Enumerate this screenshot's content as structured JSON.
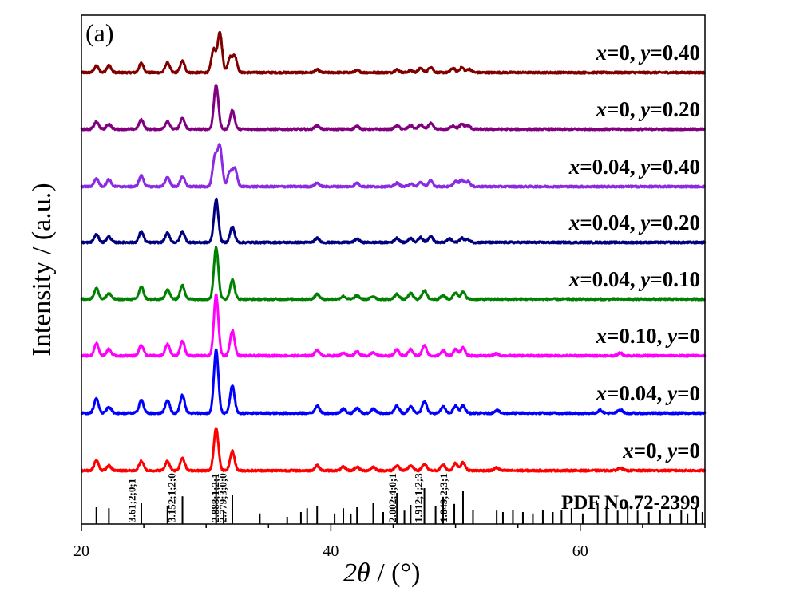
{
  "panel_label": "(a)",
  "chart_data": {
    "type": "line",
    "xlabel_symbol": "2θ",
    "xlabel_unit": " / (°)",
    "ylabel": "Intensity / (a.u.)",
    "xlim": [
      20,
      70
    ],
    "x_ticks": [
      20,
      40,
      60
    ],
    "series": [
      {
        "name": "x=0, y=0.40",
        "x_text": "x",
        "x_val": "=0, ",
        "y_text": "y",
        "y_val": "=0.40",
        "color": "#800000",
        "peaks": [
          [
            21.2,
            0.09
          ],
          [
            22.2,
            0.1
          ],
          [
            24.8,
            0.13
          ],
          [
            26.9,
            0.14
          ],
          [
            28.1,
            0.16
          ],
          [
            30.6,
            0.32
          ],
          [
            31.1,
            0.55
          ],
          [
            31.9,
            0.2
          ],
          [
            32.3,
            0.22
          ],
          [
            38.9,
            0.04
          ],
          [
            42.1,
            0.03
          ],
          [
            45.3,
            0.04
          ],
          [
            46.4,
            0.03
          ],
          [
            47.2,
            0.06
          ],
          [
            48.0,
            0.08
          ],
          [
            49.8,
            0.06
          ],
          [
            50.5,
            0.07
          ],
          [
            51.1,
            0.05
          ]
        ]
      },
      {
        "name": "x=0, y=0.20",
        "x_text": "x",
        "x_val": "=0, ",
        "y_text": "y",
        "y_val": "=0.20",
        "color": "#800080",
        "peaks": [
          [
            21.2,
            0.1
          ],
          [
            22.2,
            0.07
          ],
          [
            24.8,
            0.13
          ],
          [
            26.9,
            0.11
          ],
          [
            28.1,
            0.15
          ],
          [
            30.8,
            0.62
          ],
          [
            32.1,
            0.26
          ],
          [
            38.9,
            0.05
          ],
          [
            42.1,
            0.04
          ],
          [
            45.3,
            0.05
          ],
          [
            46.4,
            0.05
          ],
          [
            47.2,
            0.06
          ],
          [
            48.0,
            0.08
          ],
          [
            49.8,
            0.05
          ],
          [
            50.5,
            0.07
          ],
          [
            51.0,
            0.05
          ]
        ]
      },
      {
        "name": "x=0.04, y=0.40",
        "x_text": "x",
        "x_val": "=0.04, ",
        "y_text": "y",
        "y_val": "=0.40",
        "color": "#8a2be2",
        "peaks": [
          [
            21.2,
            0.11
          ],
          [
            22.2,
            0.1
          ],
          [
            24.8,
            0.15
          ],
          [
            26.9,
            0.13
          ],
          [
            28.1,
            0.14
          ],
          [
            30.7,
            0.4
          ],
          [
            31.1,
            0.55
          ],
          [
            31.9,
            0.2
          ],
          [
            32.3,
            0.24
          ],
          [
            38.9,
            0.05
          ],
          [
            42.1,
            0.05
          ],
          [
            45.3,
            0.05
          ],
          [
            46.4,
            0.04
          ],
          [
            47.2,
            0.06
          ],
          [
            48.0,
            0.08
          ],
          [
            50.0,
            0.07
          ],
          [
            50.5,
            0.09
          ],
          [
            51.0,
            0.07
          ]
        ]
      },
      {
        "name": "x=0.04, y=0.20",
        "x_text": "x",
        "x_val": "=0.04, ",
        "y_text": "y",
        "y_val": "=0.20",
        "color": "#00007f",
        "peaks": [
          [
            21.2,
            0.11
          ],
          [
            22.2,
            0.08
          ],
          [
            24.8,
            0.15
          ],
          [
            26.9,
            0.13
          ],
          [
            28.1,
            0.15
          ],
          [
            30.8,
            0.6
          ],
          [
            32.1,
            0.22
          ],
          [
            38.9,
            0.06
          ],
          [
            42.1,
            0.05
          ],
          [
            45.3,
            0.06
          ],
          [
            46.4,
            0.06
          ],
          [
            47.2,
            0.07
          ],
          [
            48.0,
            0.09
          ],
          [
            49.5,
            0.05
          ],
          [
            50.5,
            0.06
          ],
          [
            51.0,
            0.04
          ]
        ]
      },
      {
        "name": "x=0.04, y=0.10",
        "x_text": "x",
        "x_val": "=0.04, ",
        "y_text": "y",
        "y_val": "=0.10",
        "color": "#008000",
        "peaks": [
          [
            21.2,
            0.15
          ],
          [
            22.2,
            0.08
          ],
          [
            24.8,
            0.17
          ],
          [
            26.9,
            0.13
          ],
          [
            28.1,
            0.19
          ],
          [
            30.8,
            0.72
          ],
          [
            32.1,
            0.27
          ],
          [
            38.9,
            0.07
          ],
          [
            41.0,
            0.04
          ],
          [
            42.1,
            0.05
          ],
          [
            43.4,
            0.04
          ],
          [
            45.3,
            0.07
          ],
          [
            46.4,
            0.08
          ],
          [
            47.5,
            0.12
          ],
          [
            49.0,
            0.05
          ],
          [
            50.0,
            0.09
          ],
          [
            50.6,
            0.1
          ]
        ]
      },
      {
        "name": "x=0.10, y=0",
        "x_text": "x",
        "x_val": "=0.10, ",
        "y_text": "y",
        "y_val": "=0",
        "color": "#ff00ff",
        "peaks": [
          [
            21.2,
            0.17
          ],
          [
            22.2,
            0.09
          ],
          [
            24.8,
            0.15
          ],
          [
            26.9,
            0.16
          ],
          [
            28.1,
            0.2
          ],
          [
            30.8,
            0.85
          ],
          [
            32.1,
            0.35
          ],
          [
            38.9,
            0.08
          ],
          [
            41.0,
            0.04
          ],
          [
            42.1,
            0.06
          ],
          [
            43.4,
            0.05
          ],
          [
            45.3,
            0.08
          ],
          [
            46.4,
            0.09
          ],
          [
            47.5,
            0.14
          ],
          [
            49.0,
            0.07
          ],
          [
            50.0,
            0.09
          ],
          [
            50.6,
            0.11
          ],
          [
            53.3,
            0.03
          ],
          [
            63.2,
            0.04
          ]
        ]
      },
      {
        "name": "x=0.04, y=0",
        "x_text": "x",
        "x_val": "=0.04, ",
        "y_text": "y",
        "y_val": "=0",
        "color": "#0000ff",
        "peaks": [
          [
            21.2,
            0.2
          ],
          [
            22.2,
            0.09
          ],
          [
            24.8,
            0.18
          ],
          [
            26.9,
            0.18
          ],
          [
            28.1,
            0.25
          ],
          [
            30.8,
            0.88
          ],
          [
            32.1,
            0.38
          ],
          [
            38.9,
            0.1
          ],
          [
            41.0,
            0.06
          ],
          [
            42.1,
            0.07
          ],
          [
            43.4,
            0.06
          ],
          [
            45.3,
            0.1
          ],
          [
            46.4,
            0.1
          ],
          [
            47.5,
            0.17
          ],
          [
            49.0,
            0.09
          ],
          [
            50.0,
            0.1
          ],
          [
            50.6,
            0.1
          ],
          [
            53.3,
            0.04
          ],
          [
            61.6,
            0.04
          ],
          [
            63.2,
            0.05
          ]
        ]
      },
      {
        "name": "x=0, y=0",
        "x_text": "x",
        "x_val": "=0, ",
        "y_text": "y",
        "y_val": "=0",
        "color": "#ff0000",
        "peaks": [
          [
            21.2,
            0.14
          ],
          [
            22.2,
            0.07
          ],
          [
            24.8,
            0.13
          ],
          [
            26.9,
            0.13
          ],
          [
            28.1,
            0.18
          ],
          [
            30.8,
            0.6
          ],
          [
            32.1,
            0.27
          ],
          [
            38.9,
            0.07
          ],
          [
            41.0,
            0.05
          ],
          [
            42.1,
            0.05
          ],
          [
            43.4,
            0.05
          ],
          [
            45.3,
            0.07
          ],
          [
            46.4,
            0.07
          ],
          [
            47.5,
            0.09
          ],
          [
            49.0,
            0.08
          ],
          [
            50.0,
            0.1
          ],
          [
            50.6,
            0.11
          ],
          [
            53.3,
            0.04
          ],
          [
            63.2,
            0.04
          ]
        ]
      }
    ],
    "reference": {
      "name": "PDF No.72-2399",
      "peaks": [
        [
          21.2,
          0.35
        ],
        [
          22.2,
          0.33
        ],
        [
          24.8,
          0.45
        ],
        [
          26.9,
          0.37
        ],
        [
          28.1,
          0.58
        ],
        [
          30.8,
          1.0
        ],
        [
          31.4,
          0.3
        ],
        [
          32.1,
          0.6
        ],
        [
          34.3,
          0.22
        ],
        [
          36.5,
          0.15
        ],
        [
          37.6,
          0.25
        ],
        [
          38.1,
          0.33
        ],
        [
          38.9,
          0.37
        ],
        [
          40.3,
          0.22
        ],
        [
          41.0,
          0.33
        ],
        [
          41.6,
          0.2
        ],
        [
          42.1,
          0.35
        ],
        [
          43.4,
          0.45
        ],
        [
          44.2,
          0.25
        ],
        [
          45.3,
          0.65
        ],
        [
          45.9,
          0.28
        ],
        [
          46.4,
          0.4
        ],
        [
          47.5,
          0.75
        ],
        [
          48.4,
          0.38
        ],
        [
          49.0,
          0.55
        ],
        [
          49.9,
          0.42
        ],
        [
          50.6,
          0.7
        ],
        [
          51.4,
          0.3
        ],
        [
          53.3,
          0.28
        ],
        [
          53.8,
          0.25
        ],
        [
          54.6,
          0.3
        ],
        [
          55.4,
          0.25
        ],
        [
          56.2,
          0.22
        ],
        [
          57.0,
          0.3
        ],
        [
          57.8,
          0.25
        ],
        [
          58.5,
          0.3
        ],
        [
          59.3,
          0.33
        ],
        [
          60.2,
          0.22
        ],
        [
          61.4,
          0.45
        ],
        [
          62.1,
          0.38
        ],
        [
          63.0,
          0.28
        ],
        [
          63.8,
          0.4
        ],
        [
          64.6,
          0.28
        ],
        [
          65.5,
          0.25
        ],
        [
          66.4,
          0.3
        ],
        [
          67.2,
          0.22
        ],
        [
          68.1,
          0.3
        ],
        [
          68.6,
          0.22
        ],
        [
          69.3,
          0.35
        ],
        [
          69.8,
          0.25
        ]
      ],
      "annotations": [
        {
          "x": 24.0,
          "text": "3.61;2;0;1"
        },
        {
          "x": 27.2,
          "text": "3.152;1;2;0"
        },
        {
          "x": 30.7,
          "text": "2.888;1;2;1"
        },
        {
          "x": 31.3,
          "text": "2.779;3;0;0"
        },
        {
          "x": 44.9,
          "text": "2.002;4;0;1"
        },
        {
          "x": 47.0,
          "text": "1.912;1;2;3"
        },
        {
          "x": 49.0,
          "text": "1.849;2;3;1"
        }
      ]
    }
  }
}
